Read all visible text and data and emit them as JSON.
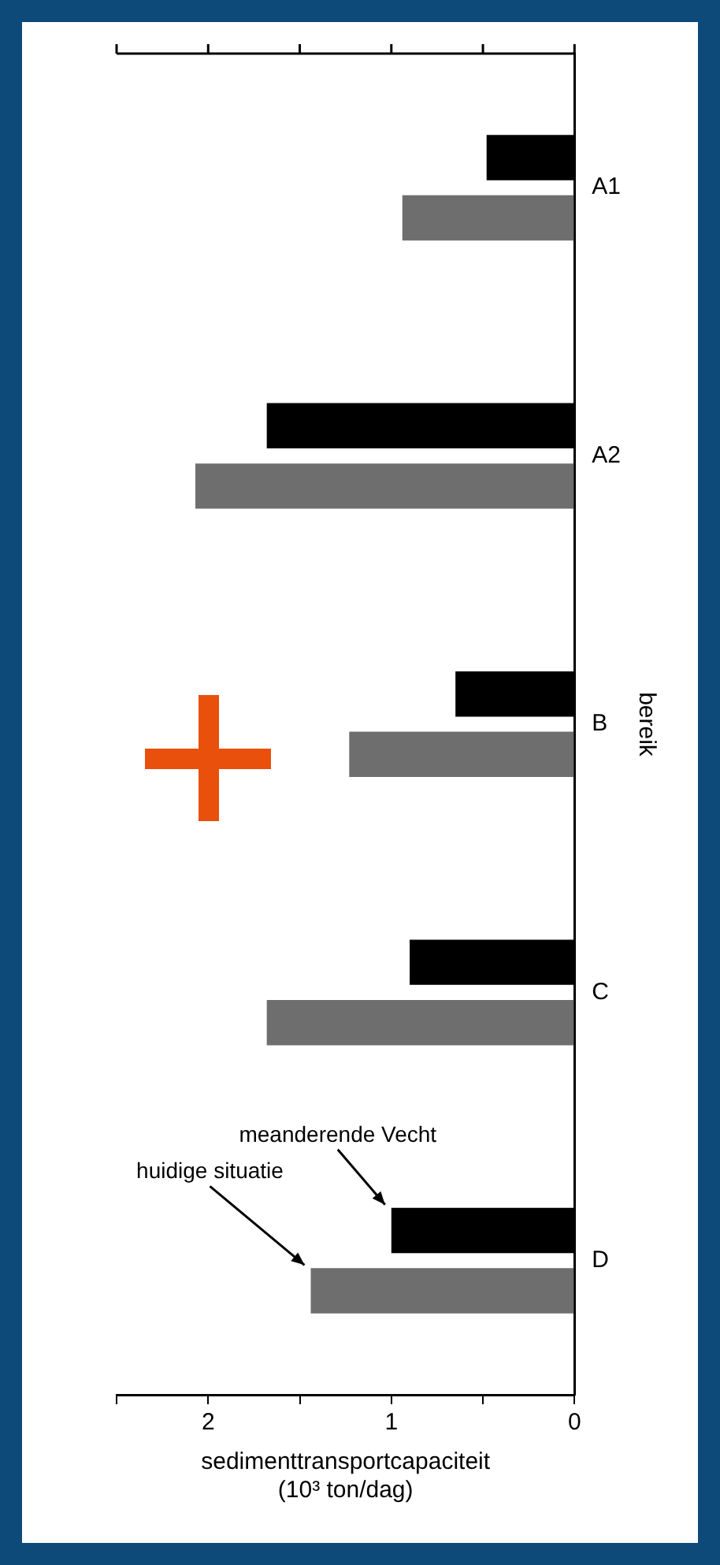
{
  "chart_data": {
    "type": "bar",
    "orientation": "horizontal",
    "xlabel": "sedimenttransportcapaciteit\n(10³ ton/dag)",
    "ylabel": "bereik",
    "categories": [
      "A1",
      "A2",
      "B",
      "C",
      "D"
    ],
    "series": [
      {
        "name": "meanderende Vecht",
        "color": "#000000",
        "values": [
          0.48,
          1.68,
          0.65,
          0.9,
          1.0
        ]
      },
      {
        "name": "huidige situatie",
        "color": "#6e6e6e",
        "values": [
          0.94,
          2.07,
          1.23,
          1.68,
          1.44
        ]
      }
    ],
    "xlim": [
      2.5,
      0
    ],
    "xticks": [
      {
        "value": 0,
        "label": "0"
      },
      {
        "value": 0.5,
        "label": null
      },
      {
        "value": 1,
        "label": "1"
      },
      {
        "value": 1.5,
        "label": null
      },
      {
        "value": 2,
        "label": "2"
      },
      {
        "value": 2.5,
        "label": null
      }
    ],
    "grid": false,
    "legend": false
  }
}
